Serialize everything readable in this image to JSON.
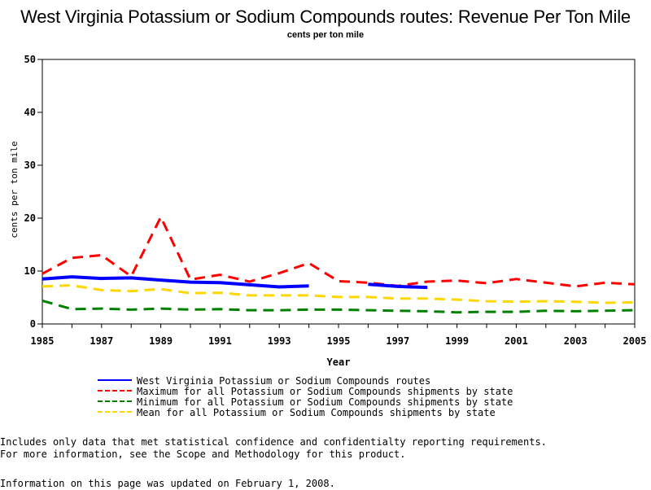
{
  "chart_data": {
    "type": "line",
    "title": "West Virginia Potassium or Sodium Compounds routes: Revenue Per Ton Mile",
    "subtitle": "cents per ton mile",
    "xlabel": "Year",
    "ylabel": "cents per ton mile",
    "xlim": [
      1985,
      2005
    ],
    "ylim": [
      0,
      50
    ],
    "x_ticks": [
      "1985",
      "1987",
      "1989",
      "1991",
      "1993",
      "1995",
      "1997",
      "1999",
      "2001",
      "2003",
      "2005"
    ],
    "y_ticks": [
      "0",
      "10",
      "20",
      "30",
      "40",
      "50"
    ],
    "grid": false,
    "legend_position": "bottom",
    "series": [
      {
        "name": "West Virginia Potassium or Sodium Compounds routes",
        "color": "#0000ff",
        "style": "solid",
        "points": [
          [
            1985,
            8.5
          ],
          [
            1986,
            8.9
          ],
          [
            1987,
            8.6
          ],
          [
            1988,
            8.7
          ],
          [
            1989,
            8.3
          ],
          [
            1990,
            7.9
          ],
          [
            1991,
            7.8
          ],
          [
            1992,
            7.4
          ],
          [
            1993,
            7.0
          ],
          [
            1994,
            7.2
          ],
          [
            1995,
            null
          ],
          [
            1996,
            7.5
          ],
          [
            1997,
            7.1
          ],
          [
            1998,
            6.9
          ]
        ]
      },
      {
        "name": "Maximum for all Potassium or Sodium Compounds shipments by state",
        "color": "#ff0000",
        "style": "dashed",
        "points": [
          [
            1985,
            9.5
          ],
          [
            1986,
            12.5
          ],
          [
            1987,
            13.0
          ],
          [
            1988,
            9.0
          ],
          [
            1989,
            20.2
          ],
          [
            1990,
            8.4
          ],
          [
            1991,
            9.3
          ],
          [
            1992,
            8.0
          ],
          [
            1993,
            9.6
          ],
          [
            1994,
            11.5
          ],
          [
            1995,
            8.1
          ],
          [
            1996,
            7.8
          ],
          [
            1997,
            7.2
          ],
          [
            1998,
            8.0
          ],
          [
            1999,
            8.2
          ],
          [
            2000,
            7.7
          ],
          [
            2001,
            8.5
          ],
          [
            2002,
            7.8
          ],
          [
            2003,
            7.1
          ],
          [
            2004,
            7.8
          ],
          [
            2005,
            7.5
          ]
        ]
      },
      {
        "name": "Minimum for all Potassium or Sodium Compounds shipments by state",
        "color": "#008000",
        "style": "dashed",
        "points": [
          [
            1985,
            4.4
          ],
          [
            1986,
            2.8
          ],
          [
            1987,
            2.9
          ],
          [
            1988,
            2.7
          ],
          [
            1989,
            2.9
          ],
          [
            1990,
            2.7
          ],
          [
            1991,
            2.8
          ],
          [
            1992,
            2.6
          ],
          [
            1993,
            2.6
          ],
          [
            1994,
            2.7
          ],
          [
            1995,
            2.7
          ],
          [
            1996,
            2.6
          ],
          [
            1997,
            2.5
          ],
          [
            1998,
            2.4
          ],
          [
            1999,
            2.2
          ],
          [
            2000,
            2.3
          ],
          [
            2001,
            2.3
          ],
          [
            2002,
            2.5
          ],
          [
            2003,
            2.4
          ],
          [
            2004,
            2.5
          ],
          [
            2005,
            2.6
          ]
        ]
      },
      {
        "name": "Mean for all Potassium or Sodium Compounds shipments by state",
        "color": "#ffd700",
        "style": "dashed",
        "points": [
          [
            1985,
            7.1
          ],
          [
            1986,
            7.3
          ],
          [
            1987,
            6.4
          ],
          [
            1988,
            6.2
          ],
          [
            1989,
            6.6
          ],
          [
            1990,
            5.8
          ],
          [
            1991,
            5.9
          ],
          [
            1992,
            5.4
          ],
          [
            1993,
            5.4
          ],
          [
            1994,
            5.4
          ],
          [
            1995,
            5.1
          ],
          [
            1996,
            5.1
          ],
          [
            1997,
            4.8
          ],
          [
            1998,
            4.8
          ],
          [
            1999,
            4.6
          ],
          [
            2000,
            4.3
          ],
          [
            2001,
            4.2
          ],
          [
            2002,
            4.3
          ],
          [
            2003,
            4.2
          ],
          [
            2004,
            4.0
          ],
          [
            2005,
            4.1
          ]
        ]
      }
    ]
  },
  "notes": {
    "line1": "Includes only data that met statistical confidence and confidentialty reporting requirements.",
    "line2": "For more information, see the Scope and Methodology for this product.",
    "updated": "Information on this page was updated on February 1, 2008."
  }
}
